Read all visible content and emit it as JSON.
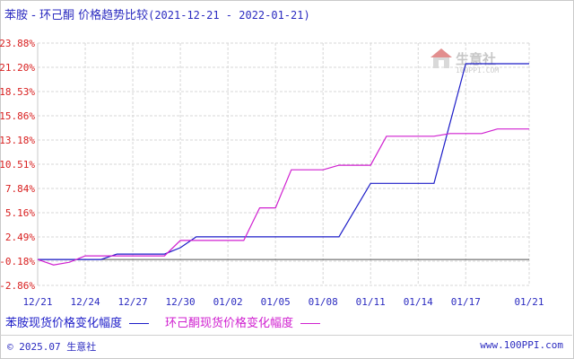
{
  "title": {
    "main": "苯胺 - 环己酮 价格趋势比较",
    "dates": "(2021-12-21 - 2022-01-21)"
  },
  "watermark": {
    "text": "生意社",
    "url": "100PPI.COM"
  },
  "footer": {
    "left": "© 2025.07 生意社",
    "right": "www.100PPI.com"
  },
  "colors": {
    "aniline": "#1c1cc8",
    "cyclohexanone": "#d020d0",
    "grid": "#d7d7d7",
    "axis_label": "#d81e1e"
  },
  "chart_data": {
    "type": "line",
    "ylim": [
      -2.86,
      23.88
    ],
    "yticks": [
      "23.88%",
      "21.20%",
      "18.53%",
      "15.86%",
      "13.18%",
      "10.51%",
      "7.84%",
      "5.16%",
      "2.49%",
      "-0.18%",
      "-2.86%"
    ],
    "ytick_values": [
      23.88,
      21.2,
      18.53,
      15.86,
      13.18,
      10.51,
      7.84,
      5.16,
      2.49,
      -0.18,
      -2.86
    ],
    "x_start": "2021-12-21",
    "x_end": "2022-01-21",
    "xticks": [
      "12/21",
      "12/24",
      "12/27",
      "12/30",
      "01/02",
      "01/05",
      "01/08",
      "01/11",
      "01/14",
      "01/17",
      "01/21"
    ],
    "xtick_dates": [
      "2021-12-21",
      "2021-12-24",
      "2021-12-27",
      "2021-12-30",
      "2022-01-02",
      "2022-01-05",
      "2022-01-08",
      "2022-01-11",
      "2022-01-14",
      "2022-01-17",
      "2022-01-21"
    ],
    "grid": true,
    "series": [
      {
        "name": "苯胺现货价格变化幅度",
        "color": "#1c1cc8",
        "points": [
          [
            "2021-12-21",
            0
          ],
          [
            "2021-12-25",
            0
          ],
          [
            "2021-12-26",
            0.6
          ],
          [
            "2021-12-29",
            0.6
          ],
          [
            "2021-12-30",
            1.3
          ],
          [
            "2021-12-31",
            2.5
          ],
          [
            "2022-01-09",
            2.5
          ],
          [
            "2022-01-11",
            8.4
          ],
          [
            "2022-01-14",
            8.4
          ],
          [
            "2022-01-15",
            8.4
          ],
          [
            "2022-01-16",
            15.0
          ],
          [
            "2022-01-17",
            21.6
          ],
          [
            "2022-01-21",
            21.6
          ]
        ]
      },
      {
        "name": "环己酮现货价格变化幅度",
        "color": "#d020d0",
        "points": [
          [
            "2021-12-21",
            0
          ],
          [
            "2021-12-22",
            -0.6
          ],
          [
            "2021-12-23",
            -0.3
          ],
          [
            "2021-12-24",
            0.4
          ],
          [
            "2021-12-26",
            0.4
          ],
          [
            "2021-12-27",
            0.4
          ],
          [
            "2021-12-29",
            0.4
          ],
          [
            "2021-12-30",
            2.1
          ],
          [
            "2022-01-03",
            2.1
          ],
          [
            "2022-01-04",
            5.7
          ],
          [
            "2022-01-05",
            5.7
          ],
          [
            "2022-01-06",
            9.9
          ],
          [
            "2022-01-08",
            9.9
          ],
          [
            "2022-01-09",
            10.4
          ],
          [
            "2022-01-11",
            10.4
          ],
          [
            "2022-01-12",
            13.6
          ],
          [
            "2022-01-15",
            13.6
          ],
          [
            "2022-01-16",
            13.9
          ],
          [
            "2022-01-18",
            13.9
          ],
          [
            "2022-01-19",
            14.4
          ],
          [
            "2022-01-21",
            14.4
          ]
        ]
      }
    ]
  }
}
